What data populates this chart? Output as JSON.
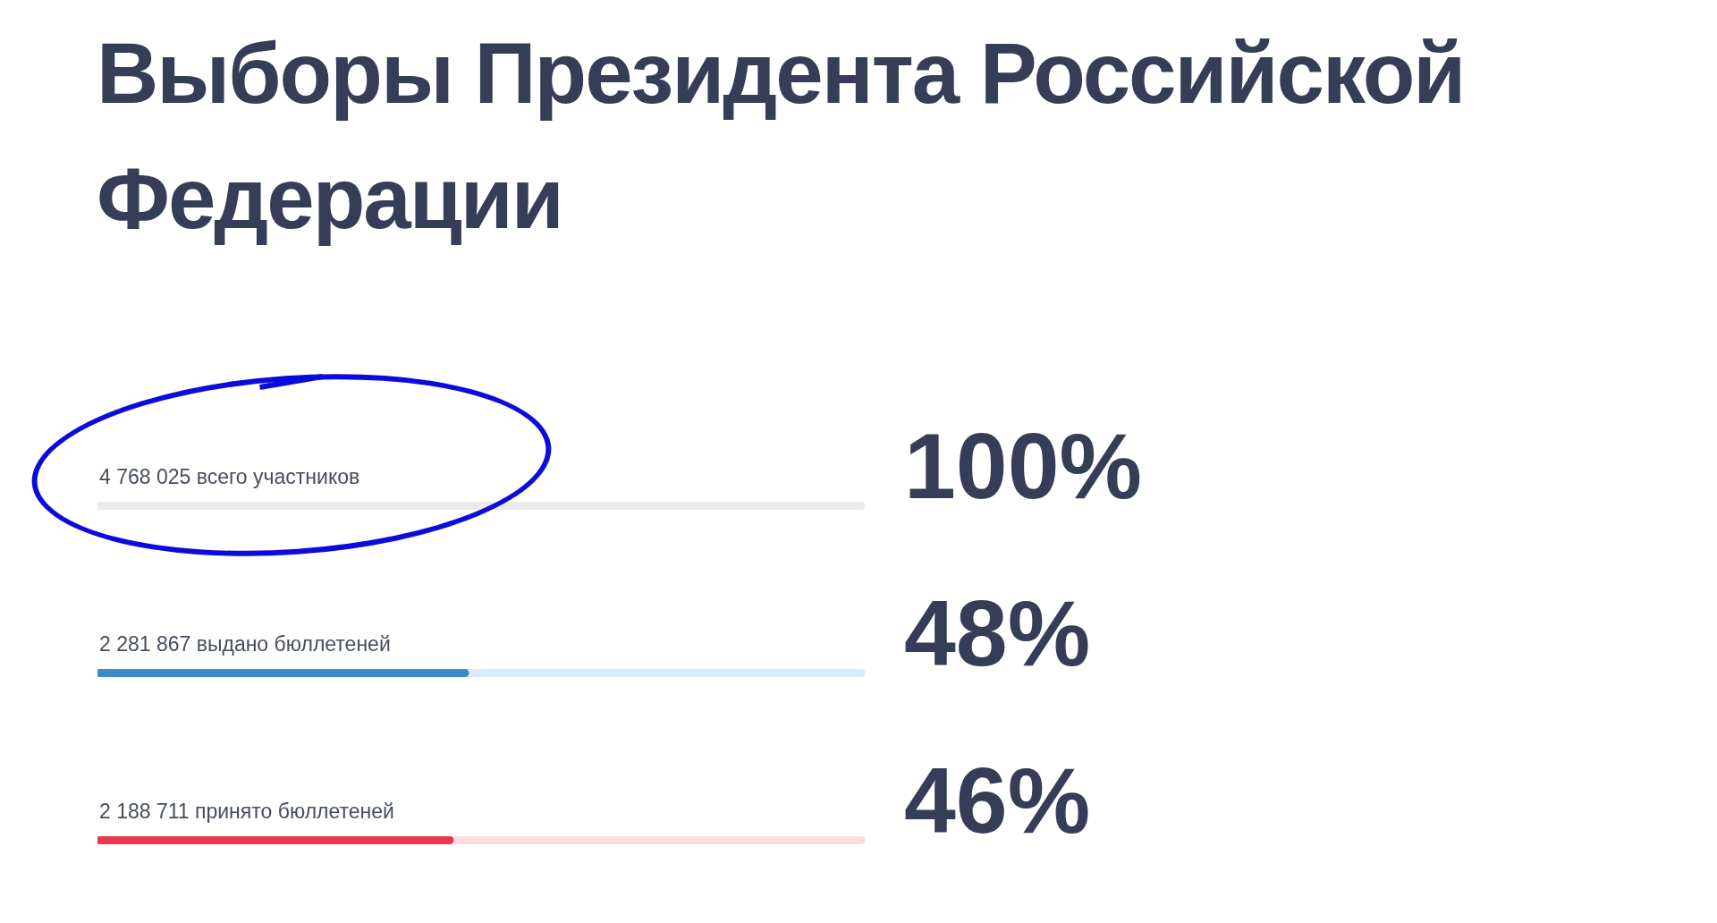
{
  "chart_data": {
    "type": "bar",
    "orientation": "horizontal",
    "title": "Выборы Президента Российской Федерации",
    "categories": [
      "4 768 025 всего участников",
      "2 281 867 выдано бюллетеней",
      "2 188 711 принято бюллетеней"
    ],
    "values": [
      100,
      48,
      46
    ],
    "value_labels": [
      "100%",
      "48%",
      "46%"
    ],
    "colors": [
      "#ebebeb",
      "#3a8bc8",
      "#e8374f"
    ],
    "xlim": [
      0,
      100
    ]
  }
}
